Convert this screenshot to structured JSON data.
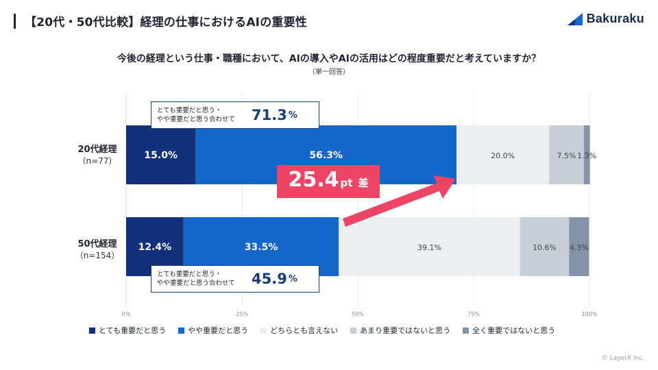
{
  "page_title": "【20代・50代比較】経理の仕事におけるAIの重要性",
  "logo": {
    "text": "Bakuraku"
  },
  "question": "今後の経理という仕事・職種において、AIの導入やAIの活用はどの程度重要だと考えていますか？",
  "note": "（単一回答）",
  "callouts": [
    {
      "text_line1": "とても重要だと思う・",
      "text_line2": "やや重要だと思う合わせて",
      "value": "71.3",
      "unit": "%"
    },
    {
      "text_line1": "とても重要だと思う・",
      "text_line2": "やや重要だと思う合わせて",
      "value": "45.9",
      "unit": "%"
    }
  ],
  "difference": {
    "value": "25.4",
    "unit": "pt",
    "suffix": "差"
  },
  "rows": [
    {
      "name": "20代経理",
      "n": "（n=77）"
    },
    {
      "name": "50代経理",
      "n": "（n=154）"
    }
  ],
  "chart_data": {
    "type": "bar",
    "orientation": "horizontal",
    "stacked": true,
    "categories": [
      "20代経理",
      "50代経理"
    ],
    "xlim": [
      0,
      100
    ],
    "x_ticks": [
      "0%",
      "25%",
      "50%",
      "75%",
      "100%"
    ],
    "grid": true,
    "legend_position": "bottom",
    "series": [
      {
        "name": "とても重要だと思う",
        "color": "#13317a",
        "values": [
          15.0,
          12.4
        ],
        "labels": [
          "15.0%",
          "12.4%"
        ],
        "label_color": "#ffffff"
      },
      {
        "name": "やや重要だと思う",
        "color": "#1466c8",
        "values": [
          56.3,
          33.5
        ],
        "labels": [
          "56.3%",
          "33.5%"
        ],
        "label_color": "#ffffff"
      },
      {
        "name": "どちらとも言えない",
        "color": "#eceef1",
        "values": [
          20.0,
          39.1
        ],
        "labels": [
          "20.0%",
          "39.1%"
        ],
        "label_color": "#444444"
      },
      {
        "name": "あまり重要ではないと思う",
        "color": "#c8ced8",
        "values": [
          7.5,
          10.6
        ],
        "labels": [
          "7.5%",
          "10.6%"
        ],
        "label_color": "#444444"
      },
      {
        "name": "全く重要ではないと思う",
        "color": "#8392a6",
        "values": [
          1.3,
          4.3
        ],
        "labels": [
          "1.3%",
          "4.3%"
        ],
        "label_color": "#444444"
      }
    ]
  },
  "copyright": "© LayerX Inc."
}
